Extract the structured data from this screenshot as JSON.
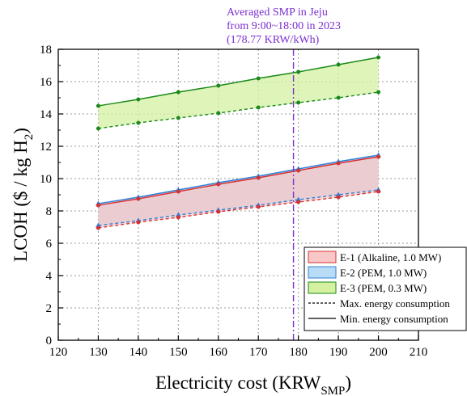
{
  "chart_data": {
    "type": "line",
    "xlabel_main": "Electricity cost (KRW",
    "xlabel_sub": "SMP",
    "xlabel_end": ")",
    "ylabel_main": "LCOH ($ / kg H",
    "ylabel_sub": "2",
    "ylabel_end": ")",
    "xlim": [
      120,
      210
    ],
    "ylim": [
      0,
      18
    ],
    "xticks": [
      120,
      130,
      140,
      150,
      160,
      170,
      180,
      190,
      200,
      210
    ],
    "yticks": [
      0,
      2,
      4,
      6,
      8,
      10,
      12,
      14,
      16,
      18
    ],
    "grid": true,
    "x": [
      130,
      140,
      150,
      160,
      170,
      180,
      190,
      200
    ],
    "series": [
      {
        "group": "E-3",
        "kind": "max",
        "color": "#1a8a1a",
        "values": [
          14.5,
          14.9,
          15.35,
          15.75,
          16.2,
          16.6,
          17.05,
          17.5
        ]
      },
      {
        "group": "E-3",
        "kind": "min",
        "color": "#1a8a1a",
        "values": [
          13.1,
          13.45,
          13.75,
          14.05,
          14.4,
          14.7,
          15.0,
          15.35
        ]
      },
      {
        "group": "E-2",
        "kind": "max",
        "color": "#2f7fd6",
        "values": [
          8.45,
          8.85,
          9.3,
          9.75,
          10.15,
          10.6,
          11.05,
          11.45
        ]
      },
      {
        "group": "E-2",
        "kind": "min",
        "color": "#2f7fd6",
        "values": [
          7.1,
          7.4,
          7.75,
          8.05,
          8.35,
          8.7,
          9.0,
          9.3
        ]
      },
      {
        "group": "E-1",
        "kind": "max",
        "color": "#d93030",
        "values": [
          8.35,
          8.75,
          9.2,
          9.65,
          10.05,
          10.5,
          10.95,
          11.35
        ]
      },
      {
        "group": "E-1",
        "kind": "min",
        "color": "#d93030",
        "values": [
          6.95,
          7.3,
          7.6,
          7.95,
          8.25,
          8.55,
          8.85,
          9.2
        ]
      }
    ],
    "bands": [
      {
        "group": "E-3",
        "fill": "#d4f0a0"
      },
      {
        "group": "E-2",
        "fill": "#b8cce6"
      },
      {
        "group": "E-1",
        "fill": "#f5c8c8"
      }
    ],
    "vline": {
      "x": 178.77,
      "color": "#7b2fd0",
      "label_lines": [
        "Averaged SMP in Jeju",
        "from 9:00~18:00 in 2023",
        "(178.77 KRW/kWh)"
      ]
    },
    "legend": {
      "placement": "bottom-right",
      "entries": [
        {
          "label": "E-1 (Alkaline, 1.0 MW)",
          "swatch": "#f8c8c8",
          "border": "#d93030"
        },
        {
          "label": "E-2 (PEM, 1.0 MW)",
          "swatch": "#b8dcf5",
          "border": "#2f7fd6"
        },
        {
          "label": "E-3 (PEM, 0.3 MW)",
          "swatch": "#d4f0a0",
          "border": "#1a8a1a"
        },
        {
          "label": "Max. energy consumption",
          "line": "dashed"
        },
        {
          "label": "Min. energy consumption",
          "line": "solid"
        }
      ]
    }
  }
}
